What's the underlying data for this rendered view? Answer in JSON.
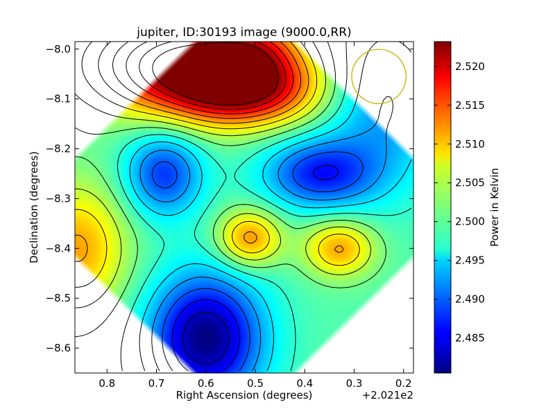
{
  "chart_data": {
    "type": "heatmap",
    "title": "jupiter, ID:30193 image (9000.0,RR)",
    "xlabel": "Right Ascension (degrees)",
    "ylabel": "Declination (degrees)",
    "x_offset_label": "+2.021e2",
    "xlim": [
      0.865,
      0.18
    ],
    "ylim": [
      -8.65,
      -7.985
    ],
    "x_ticks": [
      0.8,
      0.7,
      0.6,
      0.5,
      0.4,
      0.3,
      0.2
    ],
    "x_tick_labels": [
      "0.8",
      "0.7",
      "0.6",
      "0.5",
      "0.4",
      "0.3",
      "0.2"
    ],
    "y_ticks": [
      -8.0,
      -8.1,
      -8.2,
      -8.3,
      -8.4,
      -8.5,
      -8.6
    ],
    "y_tick_labels": [
      "−8.0",
      "−8.1",
      "−8.2",
      "−8.3",
      "−8.4",
      "−8.5",
      "−8.6"
    ],
    "colorbar": {
      "label": "Power in Kelvin",
      "range": [
        2.4805,
        2.5232
      ],
      "ticks": [
        2.485,
        2.49,
        2.495,
        2.5,
        2.505,
        2.51,
        2.515,
        2.52
      ],
      "tick_labels": [
        "2.485",
        "2.490",
        "2.495",
        "2.500",
        "2.505",
        "2.510",
        "2.515",
        "2.520"
      ],
      "colormap": "jet"
    },
    "background_level": 2.5,
    "features": [
      {
        "ra": 0.64,
        "dec": -8.03,
        "value": 2.5232,
        "sigma_ra": 0.14,
        "sigma_dec": 0.07
      },
      {
        "ra": 0.52,
        "dec": -8.08,
        "value": 2.517,
        "sigma_ra": 0.1,
        "sigma_dec": 0.05
      },
      {
        "ra": 0.86,
        "dec": -8.4,
        "value": 2.511,
        "sigma_ra": 0.07,
        "sigma_dec": 0.09
      },
      {
        "ra": 0.512,
        "dec": -8.38,
        "value": 2.512,
        "sigma_ra": 0.045,
        "sigma_dec": 0.04
      },
      {
        "ra": 0.33,
        "dec": -8.4,
        "value": 2.511,
        "sigma_ra": 0.05,
        "sigma_dec": 0.04
      },
      {
        "ra": 0.685,
        "dec": -8.25,
        "value": 2.488,
        "sigma_ra": 0.055,
        "sigma_dec": 0.06
      },
      {
        "ra": 0.37,
        "dec": -8.25,
        "value": 2.487,
        "sigma_ra": 0.08,
        "sigma_dec": 0.05
      },
      {
        "ra": 0.6,
        "dec": -8.58,
        "value": 2.4805,
        "sigma_ra": 0.08,
        "sigma_dec": 0.09
      },
      {
        "ra": 0.5,
        "dec": -8.0,
        "value": 2.506,
        "sigma_ra": 0.06,
        "sigma_dec": 0.04
      },
      {
        "ra": 0.24,
        "dec": -8.1,
        "value": 2.492,
        "sigma_ra": 0.08,
        "sigma_dec": 0.12
      }
    ],
    "contour_levels": [
      2.4835,
      2.4865,
      2.4895,
      2.4925,
      2.4955,
      2.4985,
      2.5015,
      2.5045,
      2.5075,
      2.5105,
      2.5135,
      2.5165,
      2.5195,
      2.5225
    ],
    "beam": {
      "ra": 0.25,
      "dec": -8.055,
      "radius_deg": 0.055,
      "color": "#c8b400"
    },
    "grid": false,
    "legend": "none"
  }
}
